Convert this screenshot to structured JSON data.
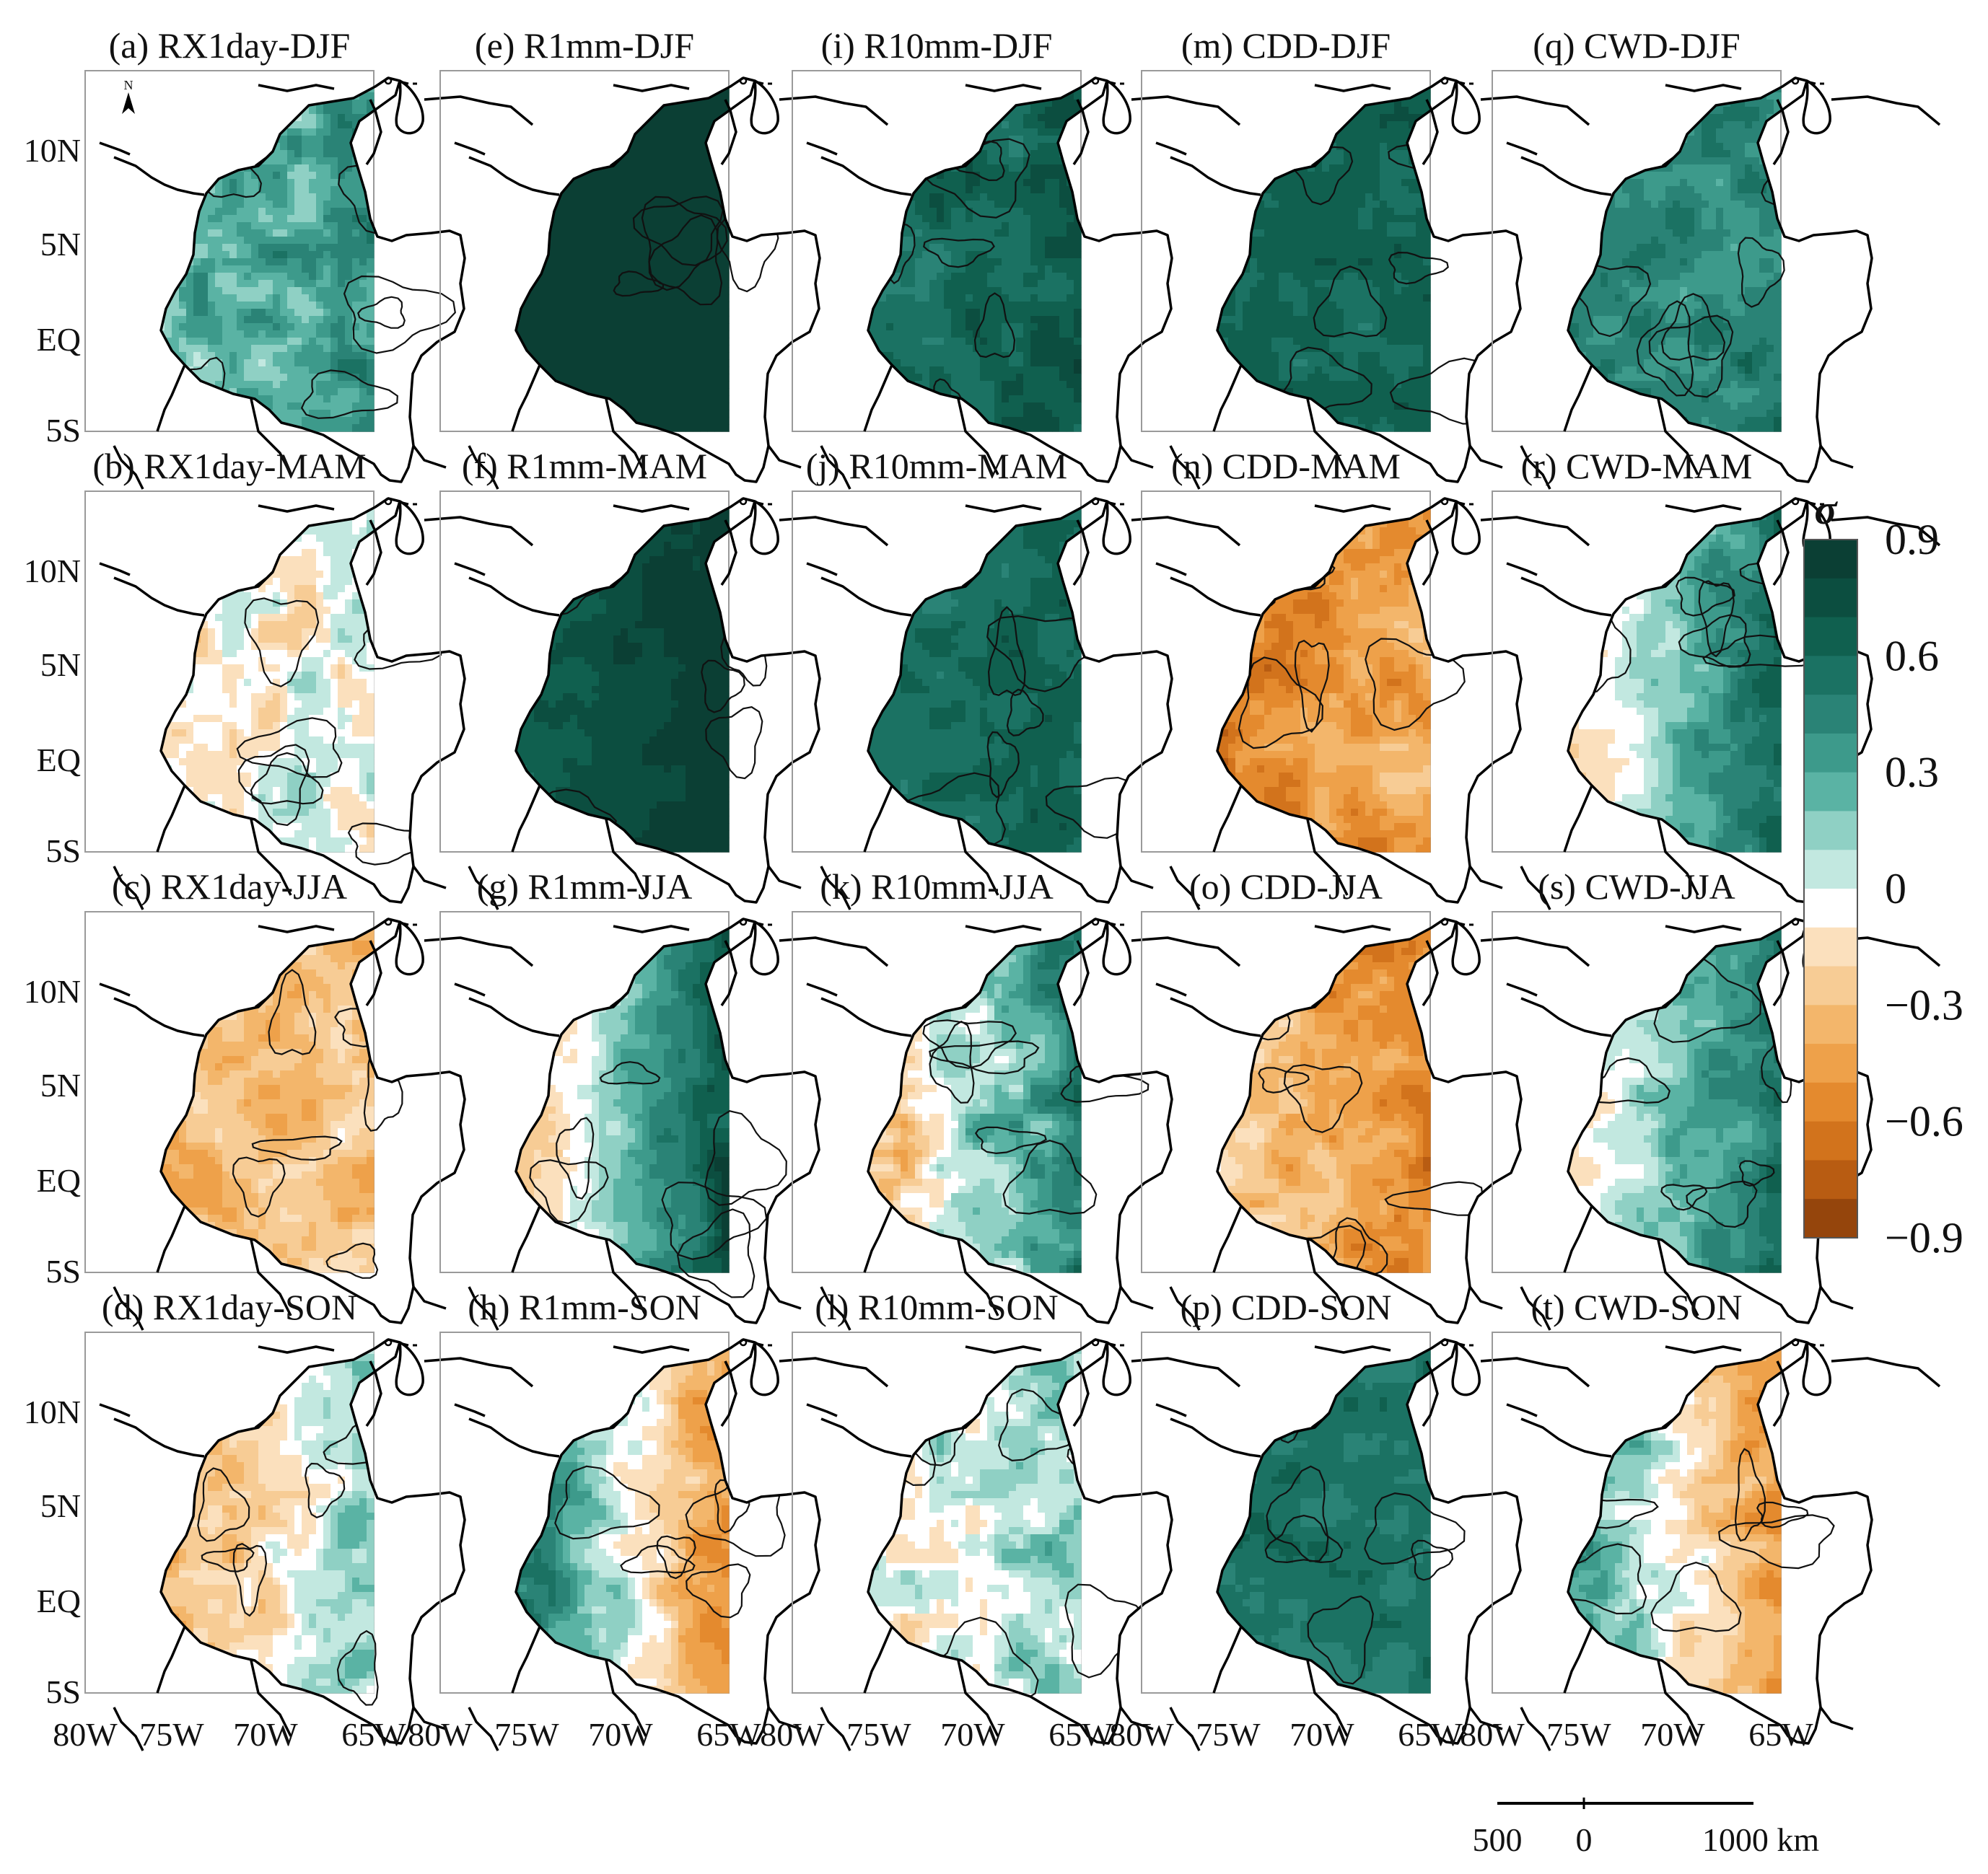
{
  "figure": {
    "colorbar": {
      "symbol": "σ",
      "range": [
        -0.9,
        0.9
      ],
      "ticks": [
        "0.9",
        "0.6",
        "0.3",
        "0",
        "−0.3",
        "−0.6",
        "−0.9"
      ],
      "colors": [
        "#0b3f34",
        "#0c4e40",
        "#10604f",
        "#1b7263",
        "#2a8376",
        "#3d9a8b",
        "#5ab3a4",
        "#8fd0c4",
        "#c2e8e0",
        "#ffffff",
        "#fbe0bd",
        "#f7cc95",
        "#f3b66b",
        "#eea14a",
        "#e48a2e",
        "#d2731c",
        "#b85c12",
        "#95450c"
      ]
    },
    "lat_labels": [
      "10N",
      "5N",
      "EQ",
      "5S"
    ],
    "lon_labels": [
      "80W",
      "75W",
      "70W",
      "65W"
    ],
    "scale_bar": {
      "labels": [
        "500",
        "0",
        "1000 km"
      ]
    },
    "north_arrow": {
      "label": "N"
    },
    "panels": [
      {
        "title": "(a) RX1day-DJF",
        "mean": 0.3,
        "bias": 0.1,
        "spread": 0.3
      },
      {
        "title": "(e) R1mm-DJF",
        "mean": 0.85,
        "bias": 0.0,
        "spread": 0.05
      },
      {
        "title": "(i) R10mm-DJF",
        "mean": 0.62,
        "bias": 0.1,
        "spread": 0.2
      },
      {
        "title": "(m) CDD-DJF",
        "mean": 0.62,
        "bias": 0.0,
        "spread": 0.15
      },
      {
        "title": "(q) CWD-DJF",
        "mean": 0.45,
        "bias": 0.05,
        "spread": 0.2
      },
      {
        "title": "(b) RX1day-MAM",
        "mean": -0.05,
        "bias": 0.0,
        "spread": 0.3
      },
      {
        "title": "(f) R1mm-MAM",
        "mean": 0.8,
        "bias": 0.15,
        "spread": 0.1
      },
      {
        "title": "(j) R10mm-MAM",
        "mean": 0.6,
        "bias": 0.05,
        "spread": 0.15
      },
      {
        "title": "(n) CDD-MAM",
        "mean": -0.5,
        "bias": 0.1,
        "spread": 0.25
      },
      {
        "title": "(r) CWD-MAM",
        "mean": 0.3,
        "bias": 0.45,
        "spread": 0.2
      },
      {
        "title": "(c) RX1day-JJA",
        "mean": -0.3,
        "bias": 0.05,
        "spread": 0.25
      },
      {
        "title": "(g) R1mm-JJA",
        "mean": 0.35,
        "bias": 0.65,
        "spread": 0.2
      },
      {
        "title": "(k) R10mm-JJA",
        "mean": 0.2,
        "bias": 0.45,
        "spread": 0.3
      },
      {
        "title": "(o) CDD-JJA",
        "mean": -0.45,
        "bias": -0.25,
        "spread": 0.25
      },
      {
        "title": "(s) CWD-JJA",
        "mean": 0.3,
        "bias": 0.4,
        "spread": 0.2
      },
      {
        "title": "(d) RX1day-SON",
        "mean": -0.05,
        "bias": 0.3,
        "spread": 0.25
      },
      {
        "title": "(h) R1mm-SON",
        "mean": -0.15,
        "bias": -0.65,
        "spread": 0.25
      },
      {
        "title": "(l) R10mm-SON",
        "mean": 0.05,
        "bias": 0.05,
        "spread": 0.3
      },
      {
        "title": "(p) CDD-SON",
        "mean": 0.52,
        "bias": 0.0,
        "spread": 0.15
      },
      {
        "title": "(t) CWD-SON",
        "mean": -0.2,
        "bias": -0.5,
        "spread": 0.25
      }
    ]
  }
}
